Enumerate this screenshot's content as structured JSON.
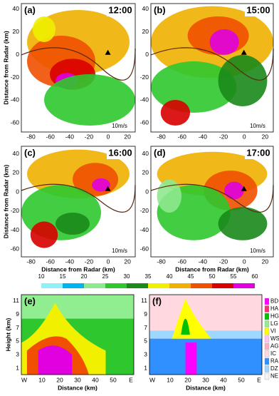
{
  "panels": [
    {
      "label": "(a)",
      "time": "12:00"
    },
    {
      "label": "(b)",
      "time": "15:00"
    },
    {
      "label": "(c)",
      "time": "16:00"
    },
    {
      "label": "(d)",
      "time": "17:00"
    }
  ],
  "map_axes": {
    "xticks": [
      -80,
      -60,
      -40,
      -20,
      0,
      20
    ],
    "yticks": [
      40,
      20,
      0,
      -20,
      -40,
      -60
    ],
    "xlabel": "Distance from Radar (km)",
    "ylabel": "Distance from Radar (km)"
  },
  "scale_label": "10m/s",
  "colorbar": {
    "ticks": [
      10,
      15,
      20,
      25,
      30,
      35,
      40,
      45,
      50,
      55,
      60
    ]
  },
  "cross_sections": [
    {
      "label": "(e)"
    },
    {
      "label": "(f)"
    }
  ],
  "cross_axes": {
    "xticks": [
      "W",
      10,
      20,
      30,
      40,
      50,
      "E"
    ],
    "yticks": [
      11,
      9,
      7,
      5,
      3,
      1
    ],
    "xlabel": "Distance (km)",
    "ylabel": "Height (km)"
  },
  "hydrometeor_legend": [
    "BD",
    "HA",
    "HG",
    "LG",
    "VI",
    "WS",
    "AG",
    "IC",
    "RA",
    "DZ",
    "NE"
  ]
}
